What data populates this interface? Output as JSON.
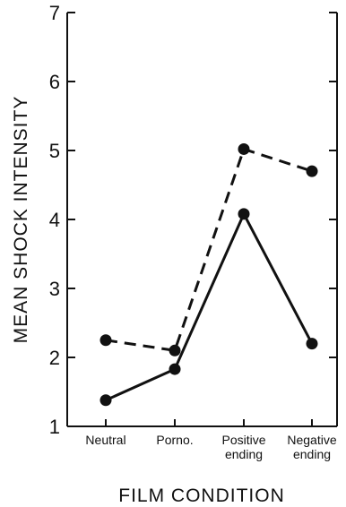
{
  "chart_data": {
    "type": "line",
    "title": "",
    "xlabel": "FILM CONDITION",
    "ylabel": "MEAN SHOCK INTENSITY",
    "ylim": [
      1,
      7
    ],
    "yticks": [
      "1",
      "2",
      "3",
      "4",
      "5",
      "6",
      "7"
    ],
    "categories": [
      [
        "Neutral"
      ],
      [
        "Porno."
      ],
      [
        "Positive",
        "ending"
      ],
      [
        "Negative",
        "ending"
      ]
    ],
    "series": [
      {
        "style": "dashed",
        "color": "#111111",
        "values": [
          2.25,
          2.1,
          5.02,
          4.7
        ]
      },
      {
        "style": "solid",
        "color": "#111111",
        "values": [
          1.38,
          1.83,
          4.08,
          2.2
        ]
      }
    ],
    "grid": false,
    "legend": "none"
  }
}
